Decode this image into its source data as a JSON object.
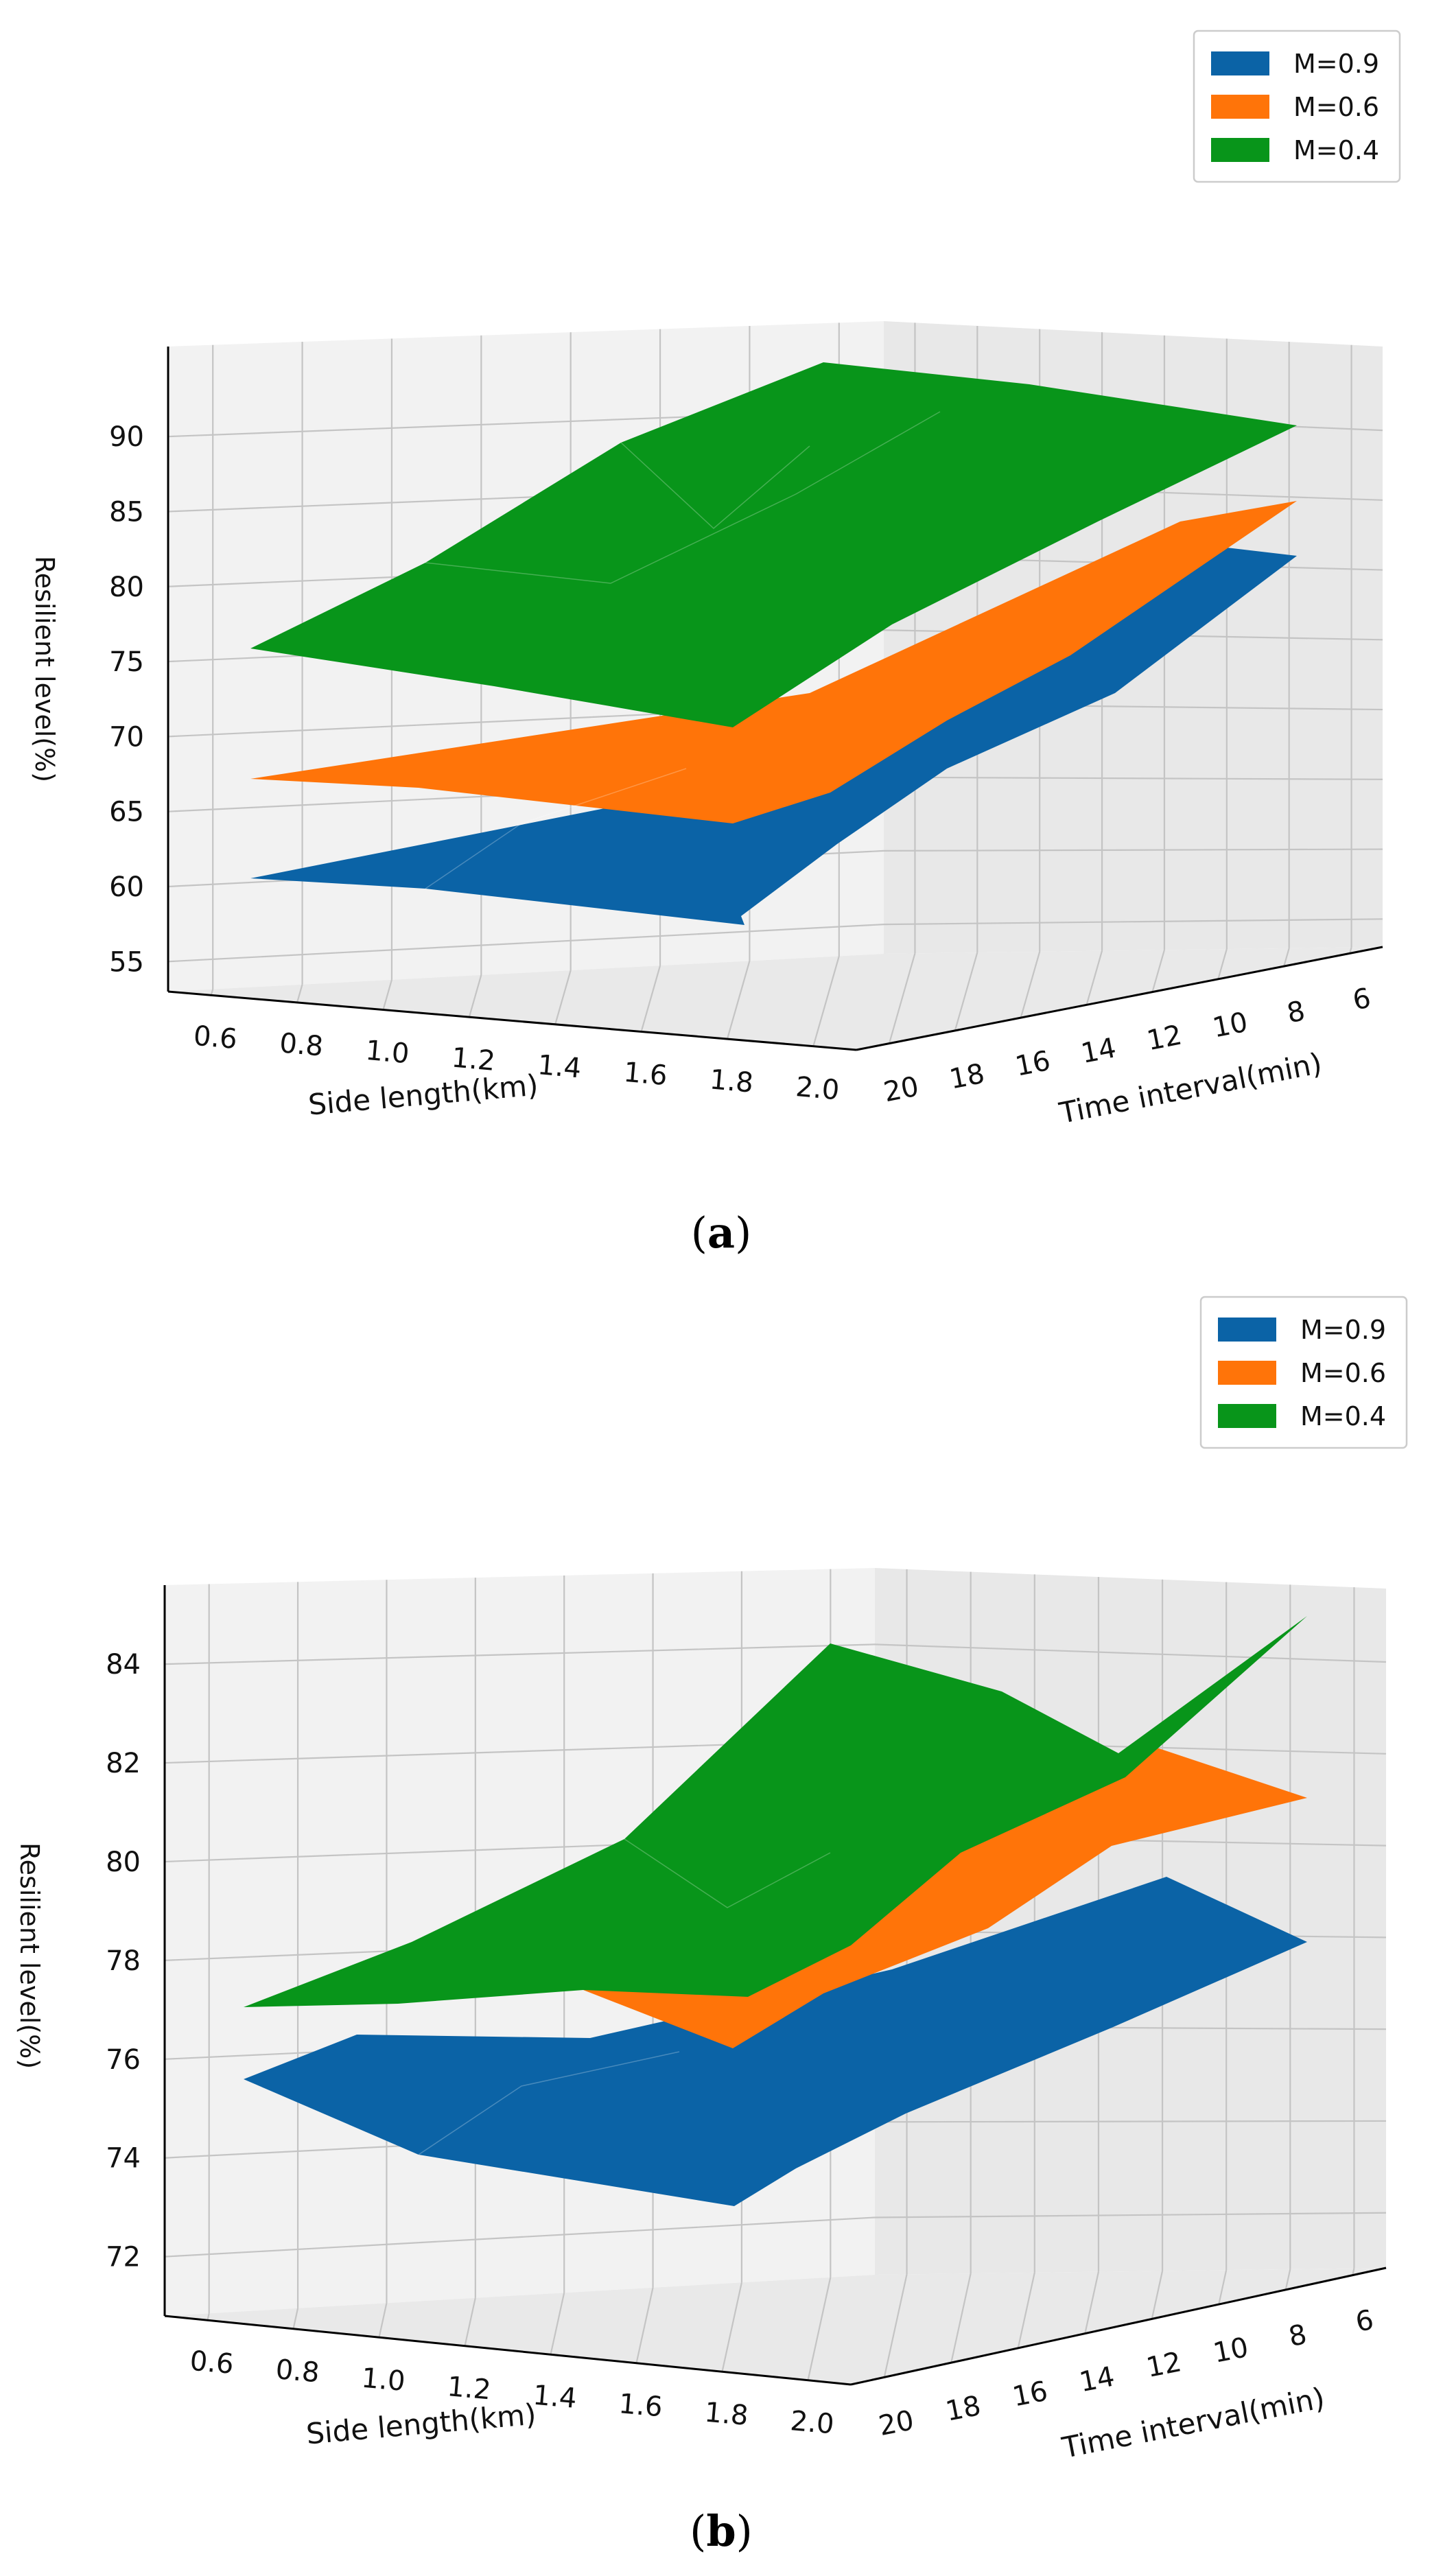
{
  "figure": {
    "panels": [
      {
        "caption_letter": "a"
      },
      {
        "caption_letter": "b"
      }
    ]
  },
  "chart_data": [
    {
      "type": "surface3d",
      "panel": "a",
      "xlabel": "Side length(km)",
      "ylabel": "Time interval(min)",
      "zlabel": "Resilient level(%)",
      "x_ticks": [
        "0.6",
        "0.8",
        "1.0",
        "1.2",
        "1.4",
        "1.6",
        "1.8",
        "2.0"
      ],
      "y_ticks": [
        "20",
        "18",
        "16",
        "14",
        "12",
        "10",
        "8",
        "6"
      ],
      "z_ticks": [
        "55",
        "60",
        "65",
        "70",
        "75",
        "80",
        "85",
        "90"
      ],
      "zlim": [
        53,
        96
      ],
      "legend": [
        "M=0.9",
        "M=0.6",
        "M=0.4"
      ],
      "legend_position": "top-right",
      "grid": true,
      "series": [
        {
          "name": "M=0.9",
          "color": "#0b63a6",
          "points": [
            {
              "x": 0.6,
              "y": 20,
              "z": 63.0
            },
            {
              "x": 1.0,
              "y": 20,
              "z": 63.5
            },
            {
              "x": 1.4,
              "y": 20,
              "z": 62.0
            },
            {
              "x": 2.0,
              "y": 20,
              "z": 59.0
            },
            {
              "x": 2.0,
              "y": 16,
              "z": 64.0
            },
            {
              "x": 2.0,
              "y": 14,
              "z": 67.0
            },
            {
              "x": 2.0,
              "y": 10,
              "z": 72.5
            },
            {
              "x": 2.0,
              "y": 6,
              "z": 78.0
            }
          ]
        },
        {
          "name": "M=0.6",
          "color": "#ff7409",
          "points": [
            {
              "x": 0.6,
              "y": 20,
              "z": 70.0
            },
            {
              "x": 1.0,
              "y": 20,
              "z": 70.5
            },
            {
              "x": 1.4,
              "y": 20,
              "z": 69.5
            },
            {
              "x": 2.0,
              "y": 20,
              "z": 66.0
            },
            {
              "x": 2.0,
              "y": 16,
              "z": 70.0
            },
            {
              "x": 2.0,
              "y": 14,
              "z": 73.0
            },
            {
              "x": 2.0,
              "y": 10,
              "z": 77.5
            },
            {
              "x": 2.0,
              "y": 6,
              "z": 82.0
            }
          ]
        },
        {
          "name": "M=0.4",
          "color": "#08951a",
          "points": [
            {
              "x": 0.6,
              "y": 20,
              "z": 78.0
            },
            {
              "x": 1.0,
              "y": 20,
              "z": 80.5
            },
            {
              "x": 1.4,
              "y": 20,
              "z": 84.0
            },
            {
              "x": 1.8,
              "y": 20,
              "z": 86.0
            },
            {
              "x": 2.0,
              "y": 20,
              "z": 71.5
            },
            {
              "x": 2.0,
              "y": 16,
              "z": 77.0
            },
            {
              "x": 2.0,
              "y": 12,
              "z": 82.0
            },
            {
              "x": 2.0,
              "y": 6,
              "z": 86.5
            }
          ]
        }
      ]
    },
    {
      "type": "surface3d",
      "panel": "b",
      "xlabel": "Side length(km)",
      "ylabel": "Time interval(min)",
      "zlabel": "Resilient level(%)",
      "x_ticks": [
        "0.6",
        "0.8",
        "1.0",
        "1.2",
        "1.4",
        "1.6",
        "1.8",
        "2.0"
      ],
      "y_ticks": [
        "20",
        "18",
        "16",
        "14",
        "12",
        "10",
        "8",
        "6"
      ],
      "z_ticks": [
        "72",
        "74",
        "76",
        "78",
        "80",
        "82",
        "84"
      ],
      "zlim": [
        70.8,
        85.6
      ],
      "legend": [
        "M=0.9",
        "M=0.6",
        "M=0.4"
      ],
      "legend_position": "top-right",
      "grid": true,
      "series": [
        {
          "name": "M=0.9",
          "color": "#0b63a6",
          "points": [
            {
              "x": 0.6,
              "y": 20,
              "z": 74.5
            },
            {
              "x": 1.0,
              "y": 20,
              "z": 73.2
            },
            {
              "x": 1.4,
              "y": 20,
              "z": 73.0
            },
            {
              "x": 2.0,
              "y": 20,
              "z": 72.3
            },
            {
              "x": 2.0,
              "y": 16,
              "z": 74.5
            },
            {
              "x": 2.0,
              "y": 12,
              "z": 76.8
            },
            {
              "x": 2.0,
              "y": 6,
              "z": 79.3
            }
          ]
        },
        {
          "name": "M=0.6",
          "color": "#ff7409",
          "points": [
            {
              "x": 0.6,
              "y": 20,
              "z": 76.0
            },
            {
              "x": 1.4,
              "y": 20,
              "z": 75.5
            },
            {
              "x": 2.0,
              "y": 20,
              "z": 74.6
            },
            {
              "x": 2.0,
              "y": 16,
              "z": 76.5
            },
            {
              "x": 2.0,
              "y": 12,
              "z": 79.0
            },
            {
              "x": 2.0,
              "y": 6,
              "z": 81.5
            }
          ]
        },
        {
          "name": "M=0.4",
          "color": "#08951a",
          "points": [
            {
              "x": 0.6,
              "y": 20,
              "z": 76.2
            },
            {
              "x": 1.0,
              "y": 20,
              "z": 77.8
            },
            {
              "x": 1.4,
              "y": 20,
              "z": 79.6
            },
            {
              "x": 1.8,
              "y": 20,
              "z": 84.0
            },
            {
              "x": 2.0,
              "y": 20,
              "z": 75.6
            },
            {
              "x": 2.0,
              "y": 16,
              "z": 78.0
            },
            {
              "x": 2.0,
              "y": 12,
              "z": 81.5
            },
            {
              "x": 2.0,
              "y": 6,
              "z": 84.2
            }
          ]
        }
      ]
    }
  ]
}
